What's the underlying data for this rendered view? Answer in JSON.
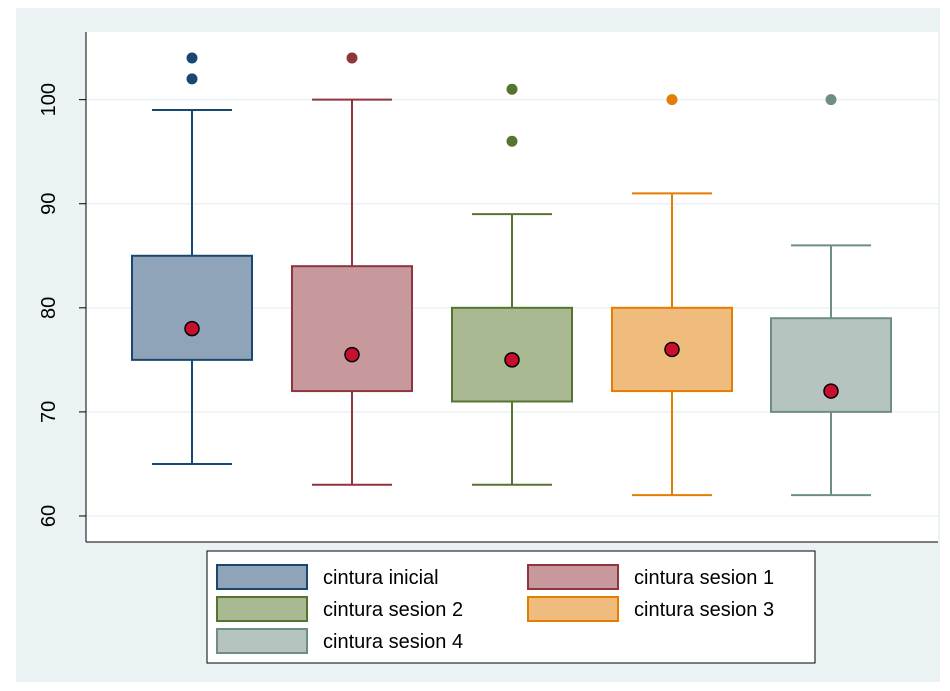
{
  "chart_data": {
    "type": "box",
    "title": "",
    "xlabel": "",
    "ylabel": "",
    "ylim": [
      57.5,
      106.5
    ],
    "yticks": [
      60,
      70,
      80,
      90,
      100
    ],
    "grid": true,
    "legend_position": "bottom",
    "background_color": "#eaf2f3",
    "mean_marker_color": "#c8102e",
    "series": [
      {
        "name": "cintura inicial",
        "color": "#1a476f",
        "fill": "#90a4b9",
        "whisker_low": 65,
        "q1": 75,
        "q3": 85,
        "whisker_high": 99,
        "mean": 78,
        "outliers": [
          102,
          104
        ]
      },
      {
        "name": "cintura sesion 1",
        "color": "#90353b",
        "fill": "#c7999c",
        "whisker_low": 63,
        "q1": 72,
        "q3": 84,
        "whisker_high": 100,
        "mean": 75.5,
        "outliers": [
          104
        ]
      },
      {
        "name": "cintura sesion 2",
        "color": "#55752f",
        "fill": "#a9b992",
        "whisker_low": 63,
        "q1": 71,
        "q3": 80,
        "whisker_high": 89,
        "mean": 75,
        "outliers": [
          96,
          101
        ]
      },
      {
        "name": "cintura sesion 3",
        "color": "#e37e00",
        "fill": "#f0bc7d",
        "whisker_low": 62,
        "q1": 72,
        "q3": 80,
        "whisker_high": 91,
        "mean": 76,
        "outliers": [
          100
        ]
      },
      {
        "name": "cintura sesion 4",
        "color": "#6e8e84",
        "fill": "#b5c4bf",
        "whisker_low": 62,
        "q1": 70,
        "q3": 79,
        "whisker_high": 86,
        "mean": 72,
        "outliers": [
          100
        ]
      }
    ]
  }
}
